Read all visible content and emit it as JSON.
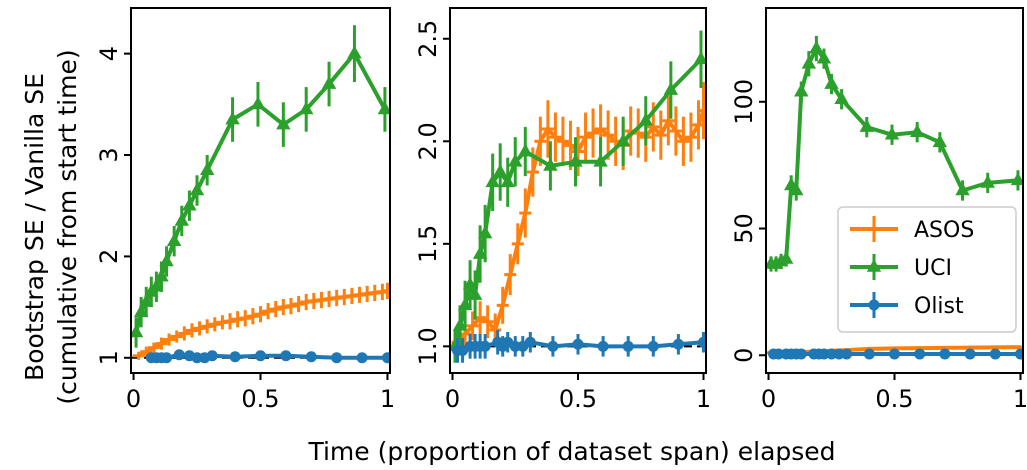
{
  "figure": {
    "ylabel_line1": "Bootstrap SE / Vanilla SE",
    "ylabel_line2": "(cumulative from start time)",
    "xlabel": "Time (proportion of dataset span) elapsed",
    "legend": [
      {
        "name": "ASOS",
        "color": "#ff7f0e",
        "marker": "plus"
      },
      {
        "name": "UCI",
        "color": "#2ca02c",
        "marker": "triangle"
      },
      {
        "name": "Olist",
        "color": "#1f77b4",
        "marker": "circle"
      }
    ]
  },
  "chart_data": [
    {
      "type": "line",
      "panel": "left",
      "xlim": [
        -0.01,
        1.01
      ],
      "ylim": [
        0.85,
        4.45
      ],
      "x_ticks": [
        0,
        0.5,
        1
      ],
      "x_tick_labels": [
        "0",
        "0.5",
        "1"
      ],
      "y_ticks": [
        1,
        2,
        3,
        4
      ],
      "y_tick_labels": [
        "1",
        "2",
        "3",
        "4"
      ],
      "reference_line": 1,
      "series": [
        {
          "name": "ASOS",
          "color": "#ff7f0e",
          "marker": "plus",
          "x": [
            0.02,
            0.05,
            0.08,
            0.11,
            0.14,
            0.17,
            0.2,
            0.23,
            0.26,
            0.29,
            0.32,
            0.35,
            0.38,
            0.41,
            0.44,
            0.47,
            0.5,
            0.53,
            0.56,
            0.59,
            0.62,
            0.65,
            0.68,
            0.71,
            0.74,
            0.77,
            0.8,
            0.83,
            0.86,
            0.89,
            0.92,
            0.95,
            0.98,
            1.0
          ],
          "y": [
            1.02,
            1.06,
            1.1,
            1.14,
            1.18,
            1.21,
            1.24,
            1.27,
            1.29,
            1.31,
            1.33,
            1.35,
            1.36,
            1.38,
            1.39,
            1.41,
            1.43,
            1.46,
            1.48,
            1.5,
            1.51,
            1.53,
            1.55,
            1.56,
            1.57,
            1.58,
            1.59,
            1.6,
            1.61,
            1.62,
            1.63,
            1.64,
            1.65,
            1.66
          ],
          "err": [
            0.04,
            0.05,
            0.05,
            0.06,
            0.06,
            0.06,
            0.07,
            0.07,
            0.07,
            0.07,
            0.07,
            0.07,
            0.08,
            0.08,
            0.08,
            0.08,
            0.08,
            0.08,
            0.08,
            0.08,
            0.08,
            0.08,
            0.08,
            0.08,
            0.08,
            0.08,
            0.08,
            0.08,
            0.08,
            0.08,
            0.08,
            0.08,
            0.08,
            0.08
          ]
        },
        {
          "name": "UCI",
          "color": "#2ca02c",
          "marker": "triangle",
          "x": [
            0.01,
            0.03,
            0.05,
            0.07,
            0.09,
            0.11,
            0.13,
            0.16,
            0.19,
            0.22,
            0.25,
            0.29,
            0.39,
            0.49,
            0.59,
            0.68,
            0.77,
            0.87,
            0.99
          ],
          "y": [
            1.25,
            1.45,
            1.55,
            1.65,
            1.7,
            1.8,
            1.95,
            2.15,
            2.35,
            2.5,
            2.65,
            2.85,
            3.35,
            3.5,
            3.3,
            3.45,
            3.7,
            4.0,
            3.45
          ],
          "err": [
            0.15,
            0.15,
            0.15,
            0.15,
            0.15,
            0.15,
            0.15,
            0.15,
            0.15,
            0.15,
            0.15,
            0.15,
            0.22,
            0.22,
            0.22,
            0.22,
            0.22,
            0.28,
            0.22
          ]
        },
        {
          "name": "Olist",
          "color": "#1f77b4",
          "marker": "circle",
          "x": [
            0.07,
            0.09,
            0.11,
            0.13,
            0.18,
            0.22,
            0.25,
            0.28,
            0.31,
            0.4,
            0.5,
            0.6,
            0.7,
            0.8,
            0.9,
            1.0
          ],
          "y": [
            1.0,
            1.0,
            1.0,
            1.0,
            1.03,
            1.02,
            1.0,
            1.0,
            1.02,
            1.01,
            1.02,
            1.02,
            1.01,
            1.0,
            1.0,
            1.0
          ],
          "err": [
            0.03,
            0.03,
            0.03,
            0.03,
            0.04,
            0.04,
            0.04,
            0.04,
            0.04,
            0.03,
            0.03,
            0.03,
            0.03,
            0.03,
            0.03,
            0.03
          ]
        }
      ]
    },
    {
      "type": "line",
      "panel": "middle",
      "xlim": [
        -0.01,
        1.01
      ],
      "ylim": [
        0.87,
        2.65
      ],
      "x_ticks": [
        0,
        0.5,
        1
      ],
      "x_tick_labels": [
        "0",
        "0.5",
        "1"
      ],
      "y_ticks": [
        1.0,
        1.5,
        2.0,
        2.5
      ],
      "y_tick_labels": [
        "1.0",
        "1.5",
        "2.0",
        "2.5"
      ],
      "reference_line": 1,
      "series": [
        {
          "name": "ASOS",
          "color": "#ff7f0e",
          "marker": "plus",
          "x": [
            0.02,
            0.05,
            0.08,
            0.11,
            0.14,
            0.17,
            0.2,
            0.23,
            0.26,
            0.29,
            0.32,
            0.35,
            0.38,
            0.41,
            0.44,
            0.47,
            0.5,
            0.53,
            0.56,
            0.59,
            0.62,
            0.65,
            0.68,
            0.71,
            0.74,
            0.77,
            0.8,
            0.83,
            0.86,
            0.89,
            0.92,
            0.95,
            0.98,
            1.0
          ],
          "y": [
            1.02,
            1.06,
            1.1,
            1.14,
            1.12,
            1.08,
            1.2,
            1.35,
            1.5,
            1.65,
            1.85,
            2.0,
            2.06,
            2.02,
            2.0,
            1.98,
            1.95,
            2.02,
            2.04,
            2.06,
            2.03,
            2.0,
            1.98,
            2.05,
            2.04,
            2.02,
            2.07,
            2.03,
            2.1,
            2.05,
            2.0,
            2.02,
            2.08,
            2.15
          ],
          "err": [
            0.06,
            0.07,
            0.07,
            0.08,
            0.08,
            0.08,
            0.09,
            0.1,
            0.1,
            0.12,
            0.12,
            0.12,
            0.14,
            0.12,
            0.12,
            0.12,
            0.12,
            0.12,
            0.12,
            0.12,
            0.12,
            0.12,
            0.12,
            0.12,
            0.12,
            0.12,
            0.12,
            0.12,
            0.12,
            0.12,
            0.12,
            0.12,
            0.12,
            0.14
          ]
        },
        {
          "name": "UCI",
          "color": "#2ca02c",
          "marker": "triangle",
          "x": [
            0.01,
            0.03,
            0.05,
            0.07,
            0.09,
            0.11,
            0.13,
            0.16,
            0.19,
            0.22,
            0.25,
            0.29,
            0.39,
            0.49,
            0.59,
            0.68,
            0.77,
            0.87,
            0.99
          ],
          "y": [
            1.0,
            1.1,
            1.2,
            1.3,
            1.25,
            1.45,
            1.55,
            1.8,
            1.85,
            1.8,
            1.9,
            1.95,
            1.88,
            1.9,
            1.9,
            2.0,
            2.1,
            2.25,
            2.4
          ],
          "err": [
            0.08,
            0.1,
            0.12,
            0.12,
            0.12,
            0.14,
            0.14,
            0.14,
            0.14,
            0.12,
            0.12,
            0.12,
            0.12,
            0.12,
            0.12,
            0.12,
            0.12,
            0.14,
            0.14
          ]
        },
        {
          "name": "Olist",
          "color": "#1f77b4",
          "marker": "circle",
          "x": [
            0.02,
            0.04,
            0.07,
            0.09,
            0.11,
            0.13,
            0.18,
            0.2,
            0.22,
            0.25,
            0.28,
            0.31,
            0.4,
            0.5,
            0.6,
            0.7,
            0.8,
            0.9,
            1.0
          ],
          "y": [
            0.98,
            0.98,
            1.0,
            1.0,
            1.0,
            1.0,
            1.02,
            1.0,
            1.02,
            1.0,
            1.0,
            1.02,
            1.0,
            1.01,
            1.0,
            1.0,
            1.0,
            1.01,
            1.02
          ],
          "err": [
            0.06,
            0.06,
            0.06,
            0.06,
            0.06,
            0.06,
            0.06,
            0.05,
            0.05,
            0.05,
            0.05,
            0.05,
            0.05,
            0.05,
            0.05,
            0.05,
            0.05,
            0.05,
            0.05
          ]
        }
      ]
    },
    {
      "type": "line",
      "panel": "right",
      "xlim": [
        -0.01,
        1.01
      ],
      "ylim": [
        -7,
        137
      ],
      "x_ticks": [
        0,
        0.5,
        1
      ],
      "x_tick_labels": [
        "0",
        "0.5",
        "1"
      ],
      "y_ticks": [
        0,
        50,
        100
      ],
      "y_tick_labels": [
        "0",
        "50",
        "100"
      ],
      "series": [
        {
          "name": "ASOS",
          "color": "#ff7f0e",
          "marker": "plus",
          "x": [
            0.0,
            0.1,
            0.2,
            0.3,
            0.4,
            0.5,
            0.6,
            0.7,
            0.8,
            0.9,
            1.0
          ],
          "y": [
            1.0,
            1.2,
            1.5,
            2.0,
            2.5,
            2.7,
            2.8,
            2.9,
            3.0,
            3.1,
            3.2
          ],
          "err": [
            0.3,
            0.3,
            0.3,
            0.3,
            0.3,
            0.3,
            0.3,
            0.3,
            0.3,
            0.3,
            0.3
          ]
        },
        {
          "name": "UCI",
          "color": "#2ca02c",
          "marker": "triangle",
          "x": [
            0.01,
            0.03,
            0.05,
            0.07,
            0.09,
            0.11,
            0.13,
            0.16,
            0.19,
            0.22,
            0.25,
            0.29,
            0.39,
            0.49,
            0.59,
            0.68,
            0.77,
            0.87,
            0.99
          ],
          "y": [
            36,
            36,
            37,
            38,
            67,
            65,
            104,
            115,
            121,
            117,
            107,
            101,
            90,
            87,
            88,
            84,
            65,
            68,
            69
          ],
          "err": [
            3,
            3,
            3,
            3,
            4,
            4,
            4,
            5,
            5,
            4,
            4,
            4,
            4,
            4,
            4,
            4,
            4,
            4,
            4
          ]
        },
        {
          "name": "Olist",
          "color": "#1f77b4",
          "marker": "circle",
          "x": [
            0.02,
            0.04,
            0.07,
            0.09,
            0.11,
            0.13,
            0.18,
            0.2,
            0.22,
            0.25,
            0.28,
            0.31,
            0.4,
            0.5,
            0.6,
            0.7,
            0.8,
            0.9,
            1.0
          ],
          "y": [
            0.5,
            0.5,
            0.5,
            0.5,
            0.5,
            0.5,
            0.5,
            0.5,
            0.5,
            0.5,
            0.5,
            0.5,
            0.5,
            0.5,
            0.5,
            0.5,
            0.5,
            0.5,
            0.5
          ],
          "err": [
            0.2,
            0.2,
            0.2,
            0.2,
            0.2,
            0.2,
            0.2,
            0.2,
            0.2,
            0.2,
            0.2,
            0.2,
            0.2,
            0.2,
            0.2,
            0.2,
            0.2,
            0.2,
            0.2
          ]
        }
      ]
    }
  ]
}
